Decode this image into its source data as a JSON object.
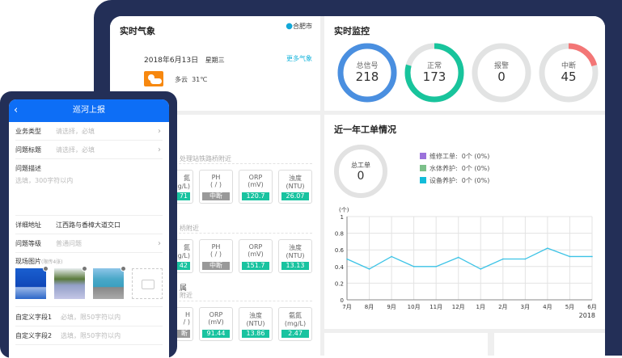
{
  "weather": {
    "title": "实时气象",
    "city": "合肥市",
    "date": "2018年6月13日",
    "weekday": "星期三",
    "more": "更多气象",
    "condition": "多云",
    "temp": "31℃",
    "icon": "partly-cloudy-icon"
  },
  "monitor": {
    "title": "实时监控",
    "rings": [
      {
        "label": "总信号",
        "value": "218",
        "fraction": 1,
        "color": "#4a8fe0"
      },
      {
        "label": "正常",
        "value": "173",
        "fraction": 0.794,
        "color": "#18c49c"
      },
      {
        "label": "报警",
        "value": "0",
        "fraction": 0,
        "color": "#f37676"
      },
      {
        "label": "中断",
        "value": "45",
        "fraction": 0.206,
        "color": "#f37676"
      }
    ]
  },
  "stations": [
    {
      "title": "处理站铁路桥附近",
      "boxes": [
        {
          "l1": "氮",
          "l2": "g/L)",
          "v": "71",
          "off": false
        },
        {
          "l1": "PH",
          "l2": "( / )",
          "v": "中断",
          "off": true
        },
        {
          "l1": "ORP",
          "l2": "(mV)",
          "v": "120.7",
          "off": false
        },
        {
          "l1": "浊度",
          "l2": "(NTU)",
          "v": "26.07",
          "off": false
        }
      ]
    },
    {
      "title": "桥附近",
      "boxes": [
        {
          "l1": "氮",
          "l2": "g/L)",
          "v": "42",
          "off": false
        },
        {
          "l1": "PH",
          "l2": "( / )",
          "v": "中断",
          "off": true
        },
        {
          "l1": "ORP",
          "l2": "(mV)",
          "v": "151.7",
          "off": false
        },
        {
          "l1": "浊度",
          "l2": "(NTU)",
          "v": "13.13",
          "off": false
        }
      ]
    },
    {
      "name": "属",
      "title": "附近",
      "boxes": [
        {
          "l1": "H",
          "l2": "/ )",
          "v": "断",
          "off": true
        },
        {
          "l1": "ORP",
          "l2": "(mV)",
          "v": "91.44",
          "off": false
        },
        {
          "l1": "浊度",
          "l2": "(NTU)",
          "v": "13.86",
          "off": false
        },
        {
          "l1": "氨氮",
          "l2": "(mg/L)",
          "v": "2.47",
          "off": false
        }
      ]
    }
  ],
  "orders": {
    "title": "近一年工单情况",
    "total_label": "总工单",
    "total": "0",
    "legend": [
      {
        "label": "维修工单:  0个 (0%)",
        "color": "#9b72db"
      },
      {
        "label": "水体养护:  0个 (0%)",
        "color": "#7cc08a"
      },
      {
        "label": "设备养护:  0个 (0%)",
        "color": "#12bcd9"
      }
    ]
  },
  "chart_data": {
    "type": "line",
    "ylabel": "(个)",
    "categories": [
      "7月",
      "8月",
      "9月",
      "10月",
      "11月",
      "12月",
      "1月",
      "2月",
      "3月",
      "4月",
      "5月",
      "6月"
    ],
    "values": [
      0.49,
      0.37,
      0.52,
      0.4,
      0.4,
      0.51,
      0.37,
      0.49,
      0.49,
      0.62,
      0.52,
      0.52
    ],
    "yticks": [
      "0",
      "0.2",
      "0.4",
      "0.6",
      "0.8",
      "1"
    ],
    "ylim": [
      0,
      1
    ],
    "year": "2018",
    "color": "#3cc3e6",
    "grid": true
  },
  "phone": {
    "title": "巡河上报",
    "rows": [
      {
        "label": "业务类型",
        "ph": "请选择，必填",
        "chev": true
      },
      {
        "label": "问题标题",
        "ph": "请选择，必填",
        "chev": true
      }
    ],
    "desc_label": "问题描述",
    "desc_ph": "选填，300字符以内",
    "addr_label": "详细地址",
    "addr_value": "江西路与香樟大道交口",
    "level_label": "问题等级",
    "level_ph": "普通问题",
    "photo_label": "现场图片",
    "photo_hint": "(限传4张)",
    "custom1_label": "自定义字段1",
    "custom1_ph": "必填，限50字符以内",
    "custom2_label": "自定义字段2",
    "custom2_ph": "选填，限50字符以内"
  }
}
